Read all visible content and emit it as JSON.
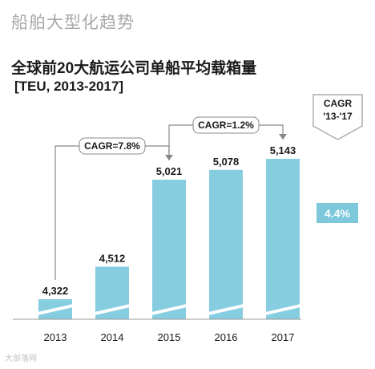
{
  "header": {
    "heading": "船舶大型化趋势"
  },
  "chart_data": {
    "type": "bar",
    "title": "全球前20大航运公司单船平均载箱量",
    "subtitle": "[TEU, 2013-2017]",
    "categories": [
      "2013",
      "2014",
      "2015",
      "2016",
      "2017"
    ],
    "values": [
      4322,
      4512,
      5021,
      5078,
      5143
    ],
    "value_labels": [
      "4,322",
      "4,512",
      "5,021",
      "5,078",
      "5,143"
    ],
    "axis_break": true,
    "annotations": [
      {
        "label": "CAGR=7.8%",
        "from": "2013",
        "to": "2015"
      },
      {
        "label": "CAGR=1.2%",
        "from": "2015",
        "to": "2017"
      }
    ],
    "side_note": {
      "label_line1": "CAGR",
      "label_line2": "'13-'17",
      "value": "4.4%"
    },
    "colors": {
      "bar": "#87cde0",
      "badge": "#7ec8dc",
      "annotation_line": "#888888"
    }
  },
  "watermark": "大部落网"
}
